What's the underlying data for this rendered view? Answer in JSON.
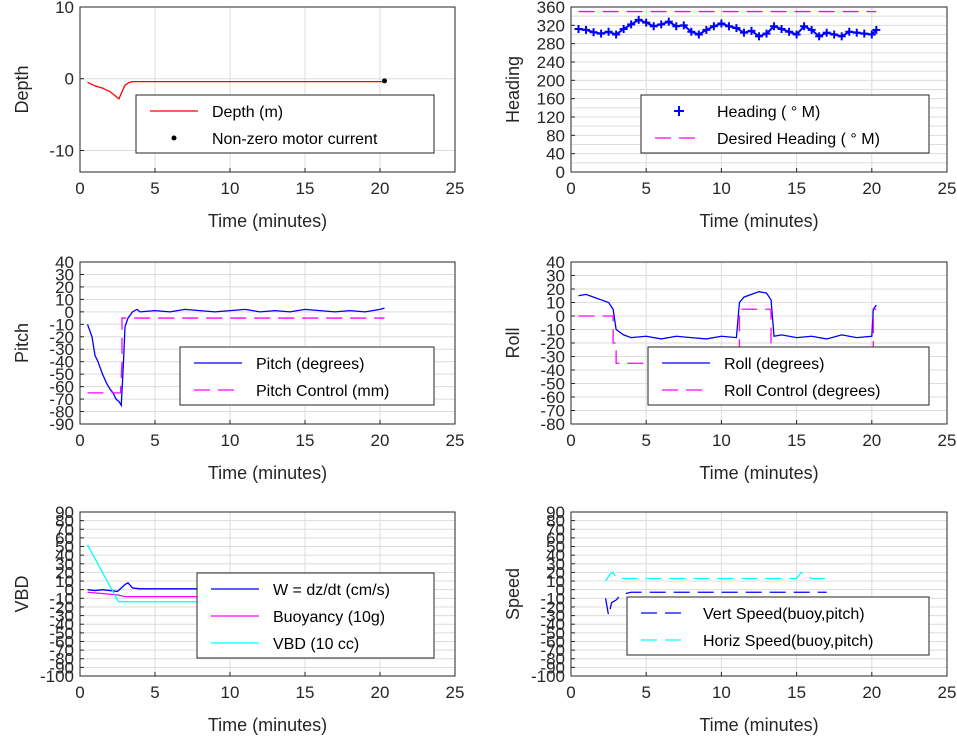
{
  "chart_data": [
    {
      "id": "depth",
      "type": "line",
      "xlabel": "Time (minutes)",
      "ylabel": "Depth",
      "xlim": [
        0,
        25
      ],
      "ylim": [
        -13,
        10
      ],
      "xticks": [
        "0",
        "5",
        "10",
        "15",
        "20",
        "25"
      ],
      "yticks": [
        "10",
        "0",
        "-10"
      ],
      "ytick_values": [
        10,
        0,
        -10
      ],
      "grid": true,
      "legend_placement": "bottom-right",
      "series": [
        {
          "name": "Depth (m)",
          "style": "solid",
          "color": "#ff0000",
          "x": [
            0.5,
            1.0,
            1.5,
            2.0,
            2.3,
            2.6,
            2.8,
            3.0,
            3.3,
            3.5,
            4.0,
            6,
            8,
            10,
            12,
            14,
            16,
            18,
            20,
            20.3
          ],
          "y": [
            -0.5,
            -1.0,
            -1.3,
            -1.8,
            -2.3,
            -2.8,
            -1.8,
            -0.9,
            -0.5,
            -0.4,
            -0.4,
            -0.4,
            -0.4,
            -0.4,
            -0.4,
            -0.4,
            -0.4,
            -0.4,
            -0.4,
            -0.4
          ]
        },
        {
          "name": "Non-zero motor current",
          "style": "marker-dot",
          "color": "#000000",
          "x": [
            20.3
          ],
          "y": [
            -0.3
          ]
        }
      ]
    },
    {
      "id": "heading",
      "type": "line",
      "xlabel": "Time (minutes)",
      "ylabel": "Heading",
      "xlim": [
        0,
        25
      ],
      "ylim": [
        0,
        360
      ],
      "xticks": [
        "0",
        "5",
        "10",
        "15",
        "20",
        "25"
      ],
      "yticks": [
        "360",
        "320",
        "280",
        "240",
        "200",
        "160",
        "120",
        "80",
        "40",
        "0"
      ],
      "ytick_values": [
        360,
        320,
        280,
        240,
        200,
        160,
        120,
        80,
        40,
        0
      ],
      "minor_yticks": [
        340,
        300,
        260,
        220,
        180,
        140,
        100,
        60,
        20
      ],
      "grid": true,
      "legend_placement": "bottom-right",
      "series": [
        {
          "name": "Heading ( ° M)",
          "style": "marker-plus",
          "color": "#0000ff",
          "x": [
            0.5,
            1,
            1.5,
            2,
            2.5,
            3,
            3.5,
            4,
            4.5,
            5,
            5.5,
            6,
            6.5,
            7,
            7.5,
            8,
            8.5,
            9,
            9.5,
            10,
            10.5,
            11,
            11.5,
            12,
            12.5,
            13,
            13.5,
            14,
            14.5,
            15,
            15.5,
            16,
            16.5,
            17,
            17.5,
            18,
            18.5,
            19,
            19.5,
            20,
            20.3
          ],
          "y": [
            312,
            310,
            305,
            302,
            306,
            300,
            312,
            322,
            332,
            326,
            318,
            322,
            328,
            318,
            320,
            306,
            300,
            310,
            318,
            324,
            318,
            314,
            304,
            308,
            296,
            302,
            318,
            312,
            306,
            300,
            318,
            310,
            296,
            304,
            300,
            296,
            306,
            304,
            302,
            300,
            310
          ]
        },
        {
          "name": "Desired Heading ( ° M)",
          "style": "dashed",
          "color": "#ff00ff",
          "x": [
            0.5,
            20.3
          ],
          "y": [
            350,
            350
          ]
        }
      ]
    },
    {
      "id": "pitch",
      "type": "line",
      "xlabel": "Time (minutes)",
      "ylabel": "Pitch",
      "xlim": [
        0,
        25
      ],
      "ylim": [
        -90,
        40
      ],
      "xticks": [
        "0",
        "5",
        "10",
        "15",
        "20",
        "25"
      ],
      "yticks": [
        "40",
        "30",
        "20",
        "10",
        "0",
        "-10",
        "-20",
        "-30",
        "-40",
        "-50",
        "-60",
        "-70",
        "-80",
        "-90"
      ],
      "ytick_values": [
        40,
        30,
        20,
        10,
        0,
        -10,
        -20,
        -30,
        -40,
        -50,
        -60,
        -70,
        -80,
        -90
      ],
      "grid": true,
      "legend_placement": "center-right",
      "series": [
        {
          "name": "Pitch (degrees)",
          "style": "solid",
          "color": "#0000ff",
          "x": [
            0.5,
            0.8,
            1.0,
            1.2,
            1.5,
            1.8,
            2.0,
            2.2,
            2.4,
            2.6,
            2.75,
            2.9,
            3.0,
            3.2,
            3.5,
            3.8,
            4,
            5,
            6,
            7,
            8,
            9,
            10,
            11,
            12,
            13,
            14,
            15,
            16,
            17,
            18,
            19,
            20,
            20.3
          ],
          "y": [
            -10,
            -20,
            -35,
            -40,
            -50,
            -58,
            -62,
            -65,
            -70,
            -72,
            -75,
            -40,
            -12,
            -5,
            0,
            2,
            0,
            1,
            0,
            2,
            1,
            0,
            1,
            2,
            0,
            1,
            0,
            2,
            1,
            0,
            1,
            0,
            2,
            3
          ]
        },
        {
          "name": "Pitch Control (mm)",
          "style": "dashed",
          "color": "#ff00ff",
          "x": [
            0.5,
            2.7,
            2.8,
            2.8,
            20.3
          ],
          "y": [
            -65,
            -65,
            -40,
            -5,
            -5
          ]
        }
      ]
    },
    {
      "id": "roll",
      "type": "line",
      "xlabel": "Time (minutes)",
      "ylabel": "Roll",
      "xlim": [
        0,
        25
      ],
      "ylim": [
        -80,
        40
      ],
      "xticks": [
        "0",
        "5",
        "10",
        "15",
        "20",
        "25"
      ],
      "yticks": [
        "40",
        "30",
        "20",
        "10",
        "0",
        "-10",
        "-20",
        "-30",
        "-40",
        "-50",
        "-60",
        "-70",
        "-80"
      ],
      "ytick_values": [
        40,
        30,
        20,
        10,
        0,
        -10,
        -20,
        -30,
        -40,
        -50,
        -60,
        -70,
        -80
      ],
      "grid": true,
      "legend_placement": "center-right",
      "series": [
        {
          "name": "Roll (degrees)",
          "style": "solid",
          "color": "#0000ff",
          "x": [
            0.5,
            1,
            1.5,
            2,
            2.5,
            2.8,
            3,
            3.5,
            4,
            5,
            6,
            7,
            8,
            9,
            10,
            11,
            11.2,
            11.5,
            12,
            12.5,
            13,
            13.3,
            13.5,
            14,
            15,
            16,
            17,
            18,
            19,
            20,
            20.1,
            20.3
          ],
          "y": [
            15,
            16,
            14,
            12,
            10,
            5,
            -10,
            -14,
            -16,
            -15,
            -17,
            -15,
            -16,
            -17,
            -15,
            -16,
            10,
            14,
            16,
            18,
            17,
            12,
            -15,
            -14,
            -16,
            -15,
            -17,
            -14,
            -16,
            -15,
            5,
            8
          ]
        },
        {
          "name": "Roll Control (degrees)",
          "style": "dashed",
          "color": "#ff00ff",
          "x": [
            0.5,
            2.8,
            2.8,
            3.0,
            3.0,
            11.2,
            11.2,
            13.3,
            13.3,
            20.1,
            20.1,
            20.3
          ],
          "y": [
            0,
            0,
            -20,
            -20,
            -35,
            -35,
            5,
            5,
            -35,
            -35,
            5,
            5
          ]
        }
      ]
    },
    {
      "id": "vbd",
      "type": "line",
      "xlabel": "Time (minutes)",
      "ylabel": "VBD",
      "xlim": [
        0,
        25
      ],
      "ylim": [
        -100,
        90
      ],
      "xticks": [
        "0",
        "5",
        "10",
        "15",
        "20",
        "25"
      ],
      "yticks": [
        "90",
        "80",
        "70",
        "60",
        "50",
        "40",
        "30",
        "20",
        "10",
        "0",
        "-10",
        "-20",
        "-30",
        "-40",
        "-50",
        "-60",
        "-70",
        "-80",
        "-90",
        "-100"
      ],
      "ytick_values": [
        90,
        80,
        70,
        60,
        50,
        40,
        30,
        20,
        10,
        0,
        -10,
        -20,
        -30,
        -40,
        -50,
        -60,
        -70,
        -80,
        -90,
        -100
      ],
      "grid": true,
      "legend_placement": "bottom-right",
      "series": [
        {
          "name": "W = dz/dt (cm/s)",
          "style": "solid",
          "color": "#0000ff",
          "x": [
            0.5,
            1,
            1.5,
            2,
            2.5,
            3,
            3.2,
            3.5,
            4,
            6,
            8,
            10,
            12,
            14,
            16,
            18,
            20,
            20.3
          ],
          "y": [
            0,
            -1,
            0,
            -1,
            -2,
            6,
            8,
            2,
            1,
            1,
            1,
            0,
            1,
            0,
            1,
            0,
            1,
            1
          ]
        },
        {
          "name": "Buoyancy (10g)",
          "style": "solid",
          "color": "#ff00ff",
          "x": [
            0.5,
            2.5,
            3,
            20.3
          ],
          "y": [
            -3,
            -6,
            -8,
            -8
          ]
        },
        {
          "name": "VBD (10 cc)",
          "style": "solid",
          "color": "#00ffff",
          "x": [
            0.5,
            2.5,
            2.6,
            20.3
          ],
          "y": [
            52,
            -12,
            -14,
            -14
          ]
        }
      ]
    },
    {
      "id": "speed",
      "type": "line",
      "xlabel": "Time (minutes)",
      "ylabel": "Speed",
      "xlim": [
        0,
        25
      ],
      "ylim": [
        -100,
        90
      ],
      "xticks": [
        "0",
        "5",
        "10",
        "15",
        "20",
        "25"
      ],
      "yticks": [
        "90",
        "80",
        "70",
        "60",
        "50",
        "40",
        "30",
        "20",
        "10",
        "0",
        "-10",
        "-20",
        "-30",
        "-40",
        "-50",
        "-60",
        "-70",
        "-80",
        "-90",
        "-100"
      ],
      "ytick_values": [
        90,
        80,
        70,
        60,
        50,
        40,
        30,
        20,
        10,
        0,
        -10,
        -20,
        -30,
        -40,
        -50,
        -60,
        -70,
        -80,
        -90,
        -100
      ],
      "grid": true,
      "legend_placement": "bottom-right",
      "series": [
        {
          "name": "Vert Speed(buoy,pitch)",
          "style": "dashed",
          "color": "#0000ff",
          "x": [
            2.3,
            2.5,
            2.7,
            3.0,
            3.2,
            3.5,
            4,
            6,
            8,
            10,
            12,
            14,
            16,
            17
          ],
          "y": [
            -10,
            -30,
            -15,
            -12,
            -8,
            -5,
            -3,
            -3,
            -3,
            -3,
            -3,
            -3,
            -3,
            -3
          ]
        },
        {
          "name": "Horiz Speed(buoy,pitch)",
          "style": "dashed",
          "color": "#00ffff",
          "x": [
            2.3,
            2.6,
            2.8,
            3.0,
            4,
            6,
            8,
            10,
            12,
            14,
            15,
            15.3,
            16,
            17
          ],
          "y": [
            10,
            18,
            20,
            13,
            13,
            13,
            13,
            13,
            13,
            13,
            13,
            20,
            13,
            13
          ]
        }
      ]
    }
  ]
}
